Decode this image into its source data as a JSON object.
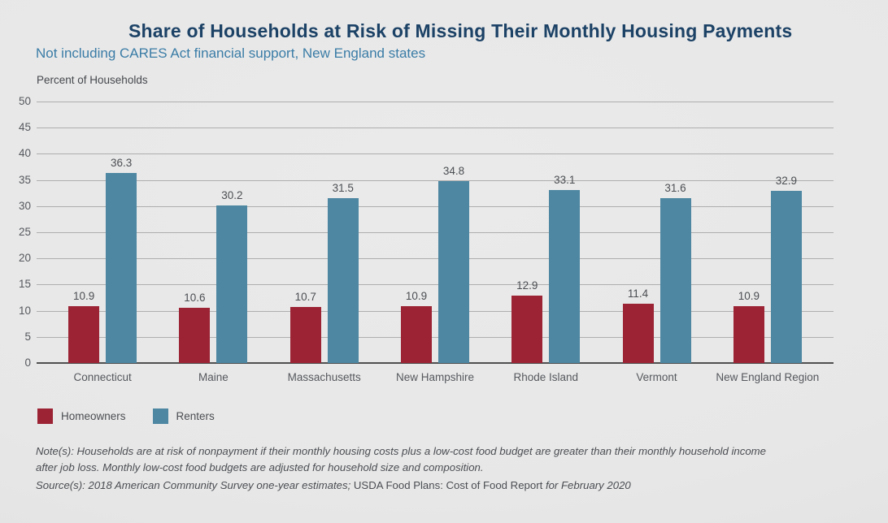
{
  "chart_data": {
    "type": "bar",
    "title": "Share of Households at Risk of Missing Their Monthly Housing Payments",
    "subtitle": "Not including CARES Act financial support, New England states",
    "ylabel": "Percent of Households",
    "categories": [
      "Connecticut",
      "Maine",
      "Massachusetts",
      "New Hampshire",
      "Rhode Island",
      "Vermont",
      "New England Region"
    ],
    "series": [
      {
        "name": "Homeowners",
        "color": "#9c2334",
        "values": [
          10.9,
          10.6,
          10.7,
          10.9,
          12.9,
          11.4,
          10.9
        ]
      },
      {
        "name": "Renters",
        "color": "#4d87a2",
        "values": [
          36.3,
          30.2,
          31.5,
          34.8,
          33.1,
          31.6,
          32.9
        ]
      }
    ],
    "ylim": [
      0,
      50
    ],
    "yticks": [
      0,
      5,
      10,
      15,
      20,
      25,
      30,
      35,
      40,
      45,
      50
    ],
    "grid": true,
    "value_labels": true,
    "legend_position": "bottom-left"
  },
  "notes": {
    "note_line1": "Note(s): Households are at risk of nonpayment if their monthly housing costs plus a low-cost food budget are greater than their monthly household income",
    "note_line2": "after job loss. Monthly low-cost food budgets are adjusted for household size and composition.",
    "source_italic_1": "Source(s): 2018 American Community Survey one-year estimates; ",
    "source_regular": "USDA Food Plans: Cost of Food Report ",
    "source_italic_2": "for February 2020"
  },
  "colors": {
    "background": "#e8e8e8",
    "title": "#1c4266",
    "subtitle": "#3a7ca6",
    "homeowners": "#9c2334",
    "renters": "#4d87a2",
    "gridline": "#aeaeae",
    "axis_line": "#4f4f4f",
    "text": "#4b4e52"
  }
}
